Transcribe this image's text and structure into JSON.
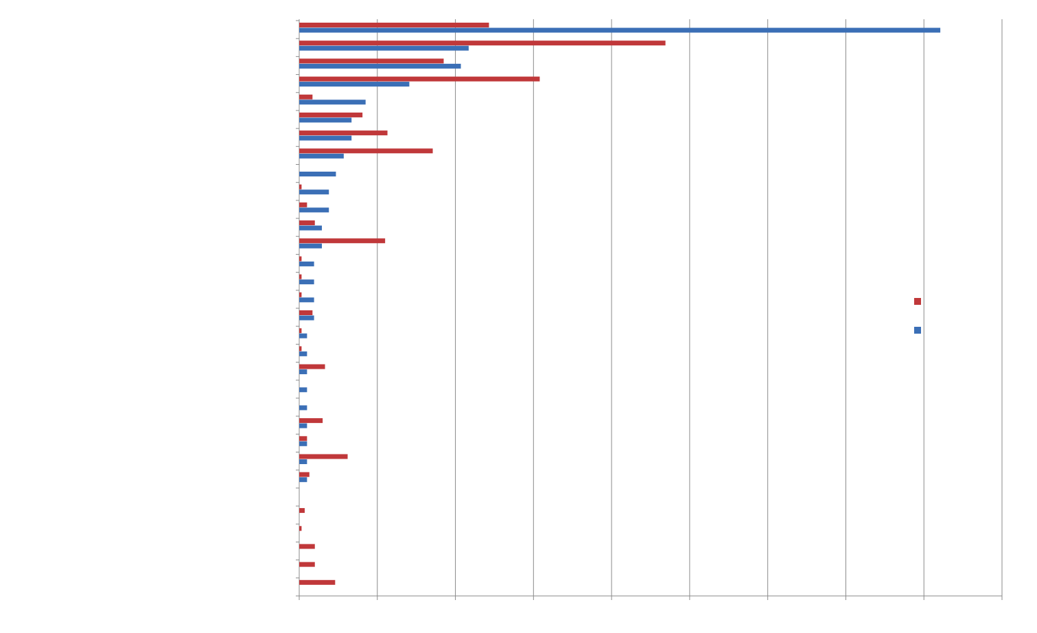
{
  "chart_data": {
    "type": "barh",
    "categories": [
      null,
      null,
      null,
      null,
      null,
      null,
      null,
      null,
      null,
      null,
      null,
      null,
      null,
      null,
      null,
      null,
      null,
      null,
      null,
      null,
      null,
      null,
      null,
      null,
      null,
      null,
      null,
      null,
      null,
      null,
      null,
      null
    ],
    "series": [
      {
        "color": "#c0383a",
        "values": [
          2.43,
          4.69,
          1.85,
          3.08,
          0.17,
          0.81,
          1.13,
          1.71,
          0,
          0.03,
          0.1,
          0.2,
          1.1,
          0.03,
          0.03,
          0.03,
          0.17,
          0.03,
          0.03,
          0.33,
          0,
          0,
          0.3,
          0.1,
          0.62,
          0.13,
          0,
          0.07,
          0.03,
          0.2,
          0.2,
          0.46
        ]
      },
      {
        "color": "#3b6fb6",
        "values": [
          8.21,
          2.17,
          2.07,
          1.41,
          0.85,
          0.67,
          0.67,
          0.57,
          0.47,
          0.38,
          0.38,
          0.29,
          0.29,
          0.19,
          0.19,
          0.19,
          0.19,
          0.1,
          0.1,
          0.1,
          0.1,
          0.1,
          0.1,
          0.1,
          0.1,
          0.1,
          0,
          0,
          0,
          0,
          0,
          0
        ]
      }
    ],
    "xlim": [
      0,
      9
    ],
    "xticks": [
      0,
      1,
      2,
      3,
      4,
      5,
      6,
      7,
      8,
      9
    ],
    "grid": true
  }
}
